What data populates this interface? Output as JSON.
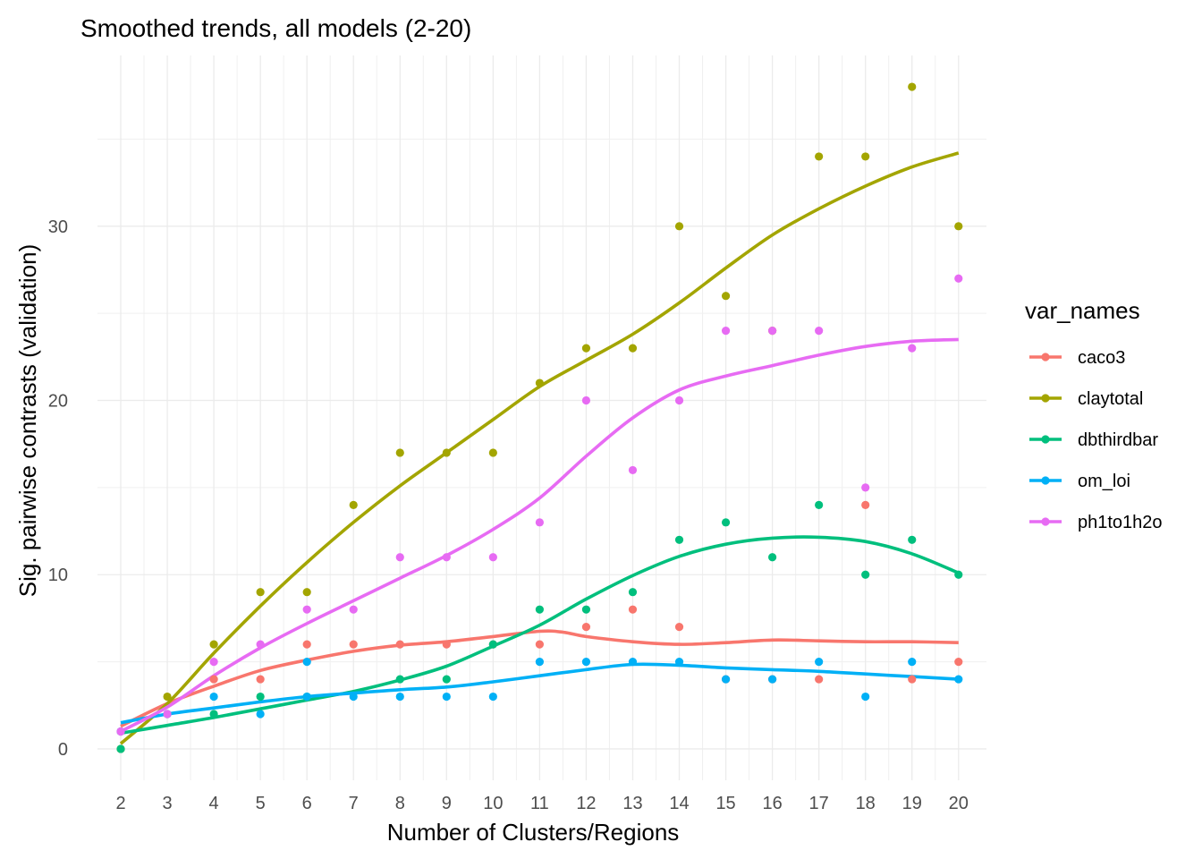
{
  "chart_data": {
    "type": "scatter",
    "title": "Smoothed trends, all models (2-20)",
    "xlabel": "Number of Clusters/Regions",
    "ylabel": "Sig. pairwise contrasts (validation)",
    "legend_title": "var_names",
    "legend_position": "right",
    "grid": true,
    "xlim": [
      1.5,
      20.6
    ],
    "ylim": [
      -1.8,
      39.8
    ],
    "x_ticks": [
      2,
      3,
      4,
      5,
      6,
      7,
      8,
      9,
      10,
      11,
      12,
      13,
      14,
      15,
      16,
      17,
      18,
      19,
      20
    ],
    "y_ticks": [
      0,
      10,
      20,
      30
    ],
    "series": [
      {
        "name": "caco3",
        "color": "#F8766D",
        "points": [
          [
            2,
            1
          ],
          [
            3,
            2
          ],
          [
            4,
            4
          ],
          [
            5,
            4
          ],
          [
            6,
            6
          ],
          [
            7,
            6
          ],
          [
            8,
            6
          ],
          [
            9,
            6
          ],
          [
            10,
            6
          ],
          [
            11,
            6
          ],
          [
            12,
            7
          ],
          [
            13,
            8
          ],
          [
            14,
            7
          ],
          [
            15,
            4
          ],
          [
            16,
            4
          ],
          [
            17,
            4
          ],
          [
            18,
            14
          ],
          [
            19,
            4
          ],
          [
            20,
            5
          ]
        ],
        "smooth": [
          [
            2,
            1.3
          ],
          [
            3,
            2.6
          ],
          [
            4,
            3.6
          ],
          [
            5,
            4.5
          ],
          [
            6,
            5.1
          ],
          [
            7,
            5.6
          ],
          [
            8,
            5.95
          ],
          [
            9,
            6.15
          ],
          [
            10,
            6.45
          ],
          [
            11,
            6.75
          ],
          [
            11.5,
            6.7
          ],
          [
            12,
            6.45
          ],
          [
            13,
            6.15
          ],
          [
            14,
            6.0
          ],
          [
            15,
            6.1
          ],
          [
            16,
            6.25
          ],
          [
            17,
            6.2
          ],
          [
            18,
            6.15
          ],
          [
            19,
            6.15
          ],
          [
            20,
            6.1
          ]
        ]
      },
      {
        "name": "claytotal",
        "color": "#A3A500",
        "points": [
          [
            2,
            0
          ],
          [
            3,
            3
          ],
          [
            4,
            6
          ],
          [
            5,
            9
          ],
          [
            6,
            9
          ],
          [
            7,
            14
          ],
          [
            8,
            17
          ],
          [
            9,
            17
          ],
          [
            10,
            17
          ],
          [
            11,
            21
          ],
          [
            12,
            23
          ],
          [
            13,
            23
          ],
          [
            14,
            30
          ],
          [
            15,
            26
          ],
          [
            16,
            24
          ],
          [
            17,
            34
          ],
          [
            18,
            34
          ],
          [
            19,
            38
          ],
          [
            20,
            30
          ]
        ],
        "smooth": [
          [
            2,
            0.3
          ],
          [
            3,
            2.6
          ],
          [
            4,
            5.5
          ],
          [
            5,
            8.2
          ],
          [
            6,
            10.7
          ],
          [
            7,
            13.0
          ],
          [
            8,
            15.1
          ],
          [
            9,
            17.0
          ],
          [
            10,
            18.9
          ],
          [
            11,
            20.8
          ],
          [
            12,
            22.3
          ],
          [
            13,
            23.8
          ],
          [
            14,
            25.6
          ],
          [
            15,
            27.6
          ],
          [
            16,
            29.5
          ],
          [
            17,
            31.0
          ],
          [
            18,
            32.3
          ],
          [
            19,
            33.4
          ],
          [
            20,
            34.2
          ]
        ]
      },
      {
        "name": "dbthirdbar",
        "color": "#00BF7D",
        "points": [
          [
            2,
            0
          ],
          [
            4,
            2
          ],
          [
            5,
            3
          ],
          [
            6,
            3
          ],
          [
            8,
            4
          ],
          [
            9,
            4
          ],
          [
            10,
            6
          ],
          [
            11,
            8
          ],
          [
            12,
            8
          ],
          [
            13,
            9
          ],
          [
            14,
            12
          ],
          [
            15,
            13
          ],
          [
            16,
            11
          ],
          [
            17,
            14
          ],
          [
            18,
            10
          ],
          [
            19,
            12
          ],
          [
            20,
            10
          ]
        ],
        "smooth": [
          [
            2,
            0.9
          ],
          [
            3,
            1.35
          ],
          [
            4,
            1.8
          ],
          [
            5,
            2.3
          ],
          [
            6,
            2.8
          ],
          [
            7,
            3.3
          ],
          [
            8,
            3.95
          ],
          [
            9,
            4.75
          ],
          [
            10,
            5.9
          ],
          [
            11,
            7.1
          ],
          [
            12,
            8.6
          ],
          [
            13,
            9.95
          ],
          [
            14,
            11.05
          ],
          [
            15,
            11.75
          ],
          [
            16,
            12.1
          ],
          [
            17,
            12.15
          ],
          [
            18,
            11.9
          ],
          [
            19,
            11.2
          ],
          [
            20,
            10.1
          ]
        ]
      },
      {
        "name": "om_loi",
        "color": "#00B0F6",
        "points": [
          [
            2,
            1
          ],
          [
            3,
            2
          ],
          [
            4,
            3
          ],
          [
            5,
            2
          ],
          [
            6,
            5
          ],
          [
            6,
            3
          ],
          [
            7,
            3
          ],
          [
            8,
            3
          ],
          [
            9,
            3
          ],
          [
            10,
            3
          ],
          [
            11,
            5
          ],
          [
            12,
            5
          ],
          [
            13,
            5
          ],
          [
            14,
            5
          ],
          [
            15,
            4
          ],
          [
            16,
            4
          ],
          [
            17,
            5
          ],
          [
            18,
            3
          ],
          [
            19,
            5
          ],
          [
            20,
            4
          ]
        ],
        "smooth": [
          [
            2,
            1.5
          ],
          [
            3,
            2.0
          ],
          [
            4,
            2.35
          ],
          [
            5,
            2.7
          ],
          [
            6,
            3.0
          ],
          [
            7,
            3.2
          ],
          [
            8,
            3.4
          ],
          [
            9,
            3.55
          ],
          [
            10,
            3.85
          ],
          [
            11,
            4.2
          ],
          [
            12,
            4.55
          ],
          [
            13,
            4.85
          ],
          [
            14,
            4.8
          ],
          [
            15,
            4.65
          ],
          [
            16,
            4.55
          ],
          [
            17,
            4.45
          ],
          [
            18,
            4.3
          ],
          [
            19,
            4.15
          ],
          [
            20,
            4.0
          ]
        ]
      },
      {
        "name": "ph1to1h2o",
        "color": "#E76BF3",
        "points": [
          [
            2,
            1
          ],
          [
            3,
            2
          ],
          [
            4,
            5
          ],
          [
            5,
            6
          ],
          [
            6,
            8
          ],
          [
            7,
            8
          ],
          [
            8,
            11
          ],
          [
            9,
            11
          ],
          [
            10,
            11
          ],
          [
            11,
            13
          ],
          [
            12,
            20
          ],
          [
            13,
            16
          ],
          [
            14,
            20
          ],
          [
            15,
            24
          ],
          [
            16,
            24
          ],
          [
            17,
            24
          ],
          [
            18,
            15
          ],
          [
            19,
            23
          ],
          [
            20,
            27
          ]
        ],
        "smooth": [
          [
            2,
            1.0
          ],
          [
            3,
            2.4
          ],
          [
            4,
            4.2
          ],
          [
            5,
            5.8
          ],
          [
            6,
            7.2
          ],
          [
            7,
            8.5
          ],
          [
            8,
            9.8
          ],
          [
            9,
            11.1
          ],
          [
            10,
            12.6
          ],
          [
            11,
            14.4
          ],
          [
            12,
            16.8
          ],
          [
            13,
            19.0
          ],
          [
            14,
            20.6
          ],
          [
            15,
            21.4
          ],
          [
            16,
            22.0
          ],
          [
            17,
            22.6
          ],
          [
            18,
            23.1
          ],
          [
            19,
            23.4
          ],
          [
            20,
            23.5
          ]
        ]
      }
    ]
  }
}
